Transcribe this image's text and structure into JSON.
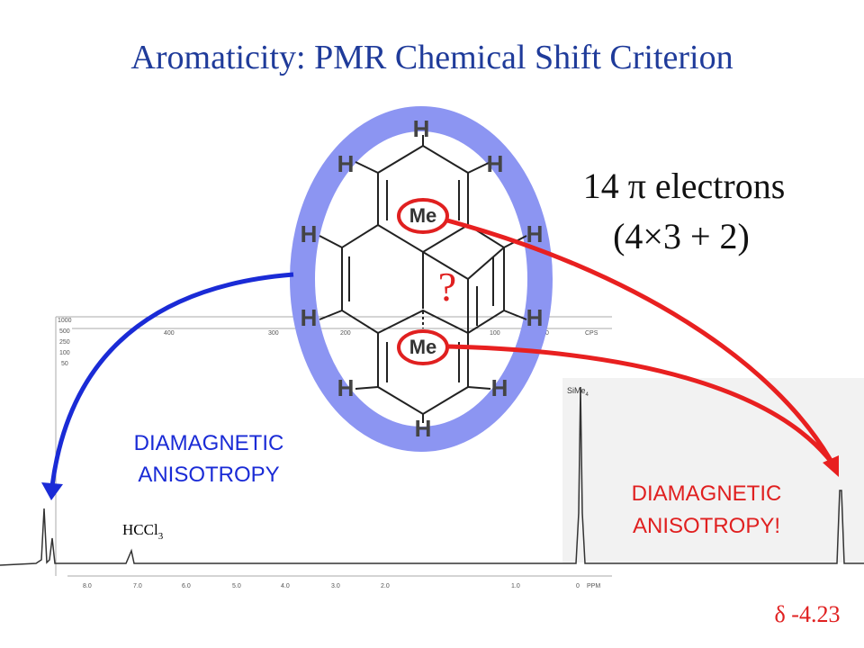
{
  "title": "Aromaticity: PMR Chemical Shift Criterion",
  "electron_count": "14 π electrons",
  "huckel_rule": "(4×3 + 2)",
  "question": "?",
  "molecule": {
    "methyl_labels": [
      "Me",
      "Me"
    ],
    "hydrogen_labels": [
      "H",
      "H",
      "H",
      "H",
      "H",
      "H",
      "H",
      "H",
      "H",
      "H"
    ]
  },
  "left_note": [
    "DIAMAGNETIC",
    "ANISOTROPY"
  ],
  "right_note": [
    "DIAMAGNETIC",
    "ANISOTROPY!"
  ],
  "shift": "δ -4.23",
  "spectrum": {
    "peak_labels": [
      {
        "formula": "HCCl",
        "subscript": "3"
      },
      {
        "formula": "SiMe",
        "subscript": "4"
      }
    ],
    "top_scale": [
      "1000",
      "500",
      "250",
      "100",
      "50",
      "400",
      "300",
      "200",
      "100",
      "0",
      "CPS"
    ],
    "bottom_scale": [
      "8.0",
      "7.0",
      "6.0",
      "5.0",
      "4.0",
      "3.0",
      "2.0",
      "1.0",
      "0",
      "PPM"
    ]
  }
}
